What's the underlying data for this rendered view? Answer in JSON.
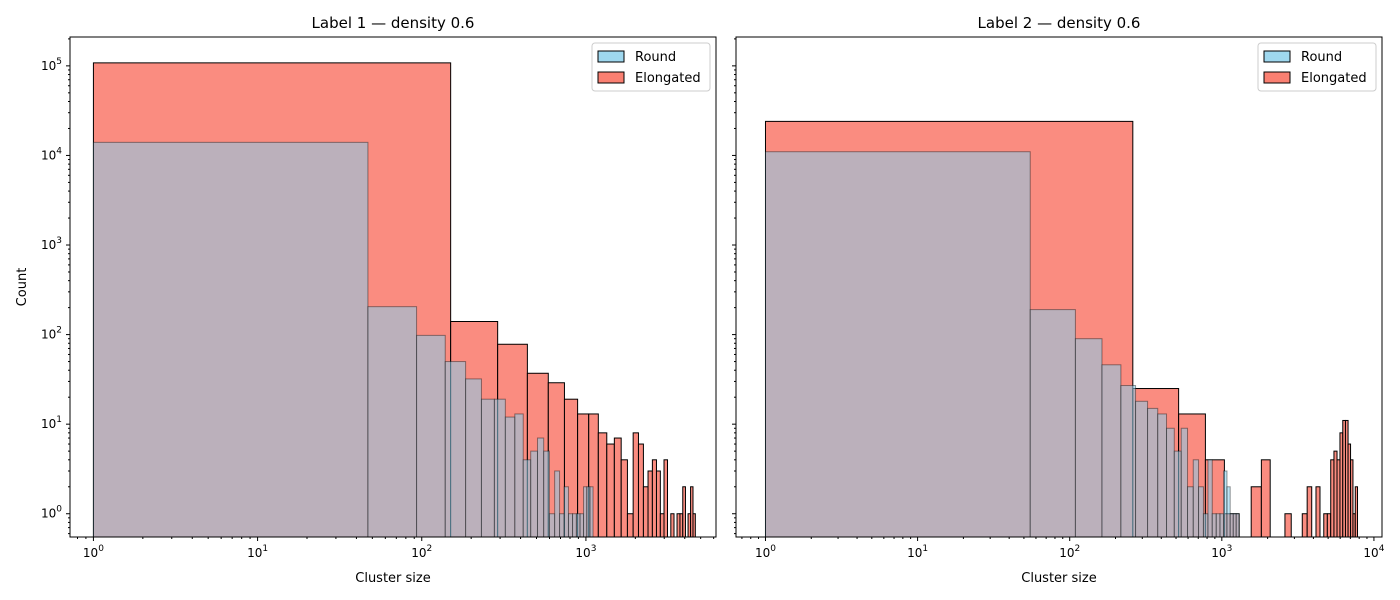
{
  "colors": {
    "round": "#87ceeb",
    "elongated": "#fa8072",
    "edge": "#000000"
  },
  "chart_data": [
    {
      "type": "bar",
      "title": "Label 1 — density 0.6",
      "xlabel": "Cluster size",
      "ylabel": "Count",
      "xscale": "log",
      "yscale": "log",
      "xlim": [
        0.72,
        6200
      ],
      "ylim": [
        0.55,
        210000
      ],
      "xticks": [
        {
          "value": 1,
          "base": "10",
          "exp": "0"
        },
        {
          "value": 10,
          "base": "10",
          "exp": "1"
        },
        {
          "value": 100,
          "base": "10",
          "exp": "2"
        },
        {
          "value": 1000,
          "base": "10",
          "exp": "3"
        }
      ],
      "yticks": [
        {
          "value": 1,
          "base": "10",
          "exp": "0"
        },
        {
          "value": 10,
          "base": "10",
          "exp": "1"
        },
        {
          "value": 100,
          "base": "10",
          "exp": "2"
        },
        {
          "value": 1000,
          "base": "10",
          "exp": "3"
        },
        {
          "value": 10000,
          "base": "10",
          "exp": "4"
        },
        {
          "value": 100000,
          "base": "10",
          "exp": "5"
        }
      ],
      "legend": {
        "position": "top-right",
        "entries": [
          "Round",
          "Elongated"
        ]
      },
      "series": [
        {
          "name": "Elongated",
          "bins": [
            [
              1,
              150,
              108000
            ],
            [
              150,
              290,
              140
            ],
            [
              290,
              440,
              78
            ],
            [
              440,
              590,
              37
            ],
            [
              590,
              740,
              29
            ],
            [
              740,
              890,
              19
            ],
            [
              890,
              1040,
              13
            ],
            [
              1040,
              1190,
              13
            ],
            [
              1190,
              1340,
              8
            ],
            [
              1340,
              1490,
              6
            ],
            [
              1490,
              1640,
              7
            ],
            [
              1640,
              1790,
              4
            ],
            [
              1790,
              1940,
              1
            ],
            [
              1940,
              2090,
              8
            ],
            [
              2090,
              2240,
              6
            ],
            [
              2240,
              2390,
              2
            ],
            [
              2390,
              2540,
              3
            ],
            [
              2540,
              2690,
              4
            ],
            [
              2690,
              2840,
              3
            ],
            [
              2840,
              2990,
              1
            ],
            [
              2990,
              3140,
              4
            ],
            [
              3290,
              3440,
              1
            ],
            [
              3590,
              3740,
              1
            ],
            [
              3740,
              3890,
              1
            ],
            [
              3890,
              4040,
              2
            ],
            [
              4190,
              4340,
              1
            ],
            [
              4340,
              4490,
              2
            ],
            [
              4490,
              4640,
              1
            ]
          ]
        },
        {
          "name": "Round",
          "bins": [
            [
              1,
              47,
              14000
            ],
            [
              47,
              93,
              205
            ],
            [
              93,
              139,
              98
            ],
            [
              139,
              185,
              50
            ],
            [
              185,
              231,
              32
            ],
            [
              231,
              277,
              19
            ],
            [
              277,
              323,
              19
            ],
            [
              323,
              369,
              12
            ],
            [
              369,
              415,
              13
            ],
            [
              415,
              461,
              4
            ],
            [
              461,
              507,
              5
            ],
            [
              507,
              553,
              7
            ],
            [
              553,
              599,
              5
            ],
            [
              599,
              645,
              1
            ],
            [
              645,
              691,
              3
            ],
            [
              691,
              737,
              1
            ],
            [
              737,
              783,
              2
            ],
            [
              783,
              829,
              1
            ],
            [
              829,
              875,
              1
            ],
            [
              875,
              921,
              1
            ],
            [
              921,
              967,
              1
            ],
            [
              967,
              1013,
              2
            ],
            [
              1013,
              1059,
              2
            ],
            [
              1059,
              1105,
              2
            ]
          ]
        }
      ]
    },
    {
      "type": "bar",
      "title": "Label 2 — density 0.6",
      "xlabel": "Cluster size",
      "ylabel": "",
      "xscale": "log",
      "yscale": "log",
      "xlim": [
        0.64,
        11300
      ],
      "ylim": [
        0.55,
        210000
      ],
      "xticks": [
        {
          "value": 1,
          "base": "10",
          "exp": "0"
        },
        {
          "value": 10,
          "base": "10",
          "exp": "1"
        },
        {
          "value": 100,
          "base": "10",
          "exp": "2"
        },
        {
          "value": 1000,
          "base": "10",
          "exp": "3"
        },
        {
          "value": 10000,
          "base": "10",
          "exp": "4"
        }
      ],
      "yticks": [],
      "legend": {
        "position": "top-right",
        "entries": [
          "Round",
          "Elongated"
        ]
      },
      "series": [
        {
          "name": "Elongated",
          "bins": [
            [
              1,
              260,
              24000
            ],
            [
              260,
              520,
              25
            ],
            [
              520,
              780,
              13
            ],
            [
              780,
              1040,
              4
            ],
            [
              1040,
              1300,
              1
            ],
            [
              1560,
              1820,
              2
            ],
            [
              1820,
              2080,
              4
            ],
            [
              2600,
              2860,
              1
            ],
            [
              3380,
              3640,
              1
            ],
            [
              3640,
              3900,
              2
            ],
            [
              4160,
              4420,
              2
            ],
            [
              4680,
              4940,
              1
            ],
            [
              4940,
              5200,
              1
            ],
            [
              5200,
              5460,
              4
            ],
            [
              5460,
              5720,
              5
            ],
            [
              5720,
              5980,
              4
            ],
            [
              5980,
              6240,
              8
            ],
            [
              6240,
              6500,
              11
            ],
            [
              6500,
              6760,
              11
            ],
            [
              6760,
              7020,
              6
            ],
            [
              7020,
              7280,
              4
            ],
            [
              7280,
              7540,
              1
            ],
            [
              7540,
              7800,
              2
            ]
          ]
        },
        {
          "name": "Round",
          "bins": [
            [
              1,
              55,
              11000
            ],
            [
              55,
              109,
              190
            ],
            [
              109,
              163,
              90
            ],
            [
              163,
              217,
              46
            ],
            [
              217,
              271,
              27
            ],
            [
              271,
              325,
              18
            ],
            [
              325,
              379,
              15
            ],
            [
              379,
              433,
              13
            ],
            [
              433,
              487,
              9
            ],
            [
              487,
              541,
              5
            ],
            [
              541,
              595,
              9
            ],
            [
              595,
              649,
              2
            ],
            [
              649,
              703,
              4
            ],
            [
              703,
              757,
              2
            ],
            [
              757,
              811,
              1
            ],
            [
              811,
              865,
              4
            ],
            [
              865,
              919,
              1
            ],
            [
              919,
              973,
              1
            ],
            [
              973,
              1027,
              1
            ],
            [
              1027,
              1081,
              3
            ],
            [
              1081,
              1135,
              2
            ],
            [
              1135,
              1189,
              1
            ],
            [
              1189,
              1243,
              1
            ],
            [
              1243,
              1297,
              1
            ]
          ]
        }
      ]
    }
  ]
}
